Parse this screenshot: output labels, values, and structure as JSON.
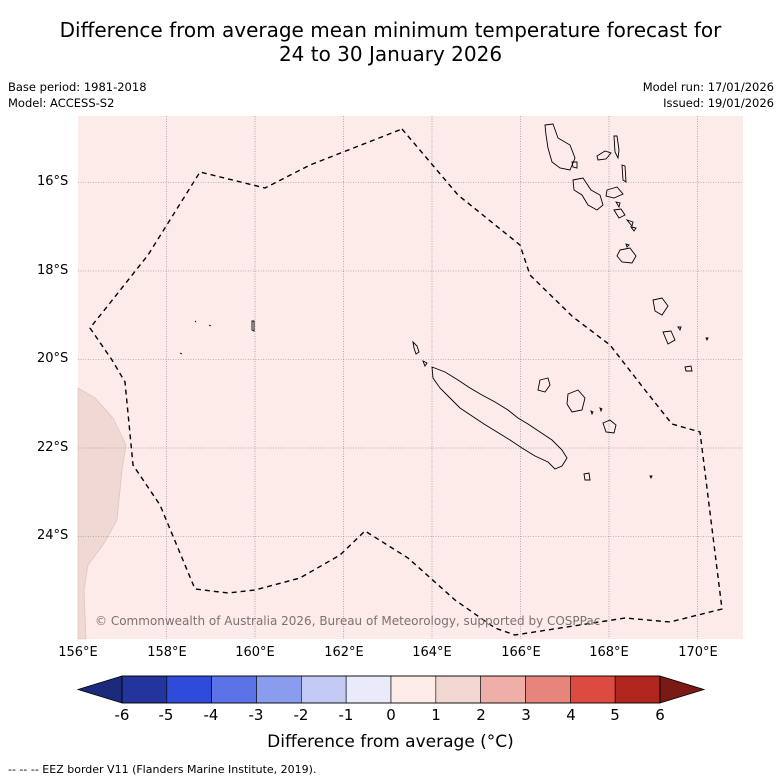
{
  "title": {
    "line1": "Difference from average mean minimum temperature forecast for",
    "line2": "24 to 30 January 2026"
  },
  "meta_left": {
    "base_period": "Base period: 1981-2018",
    "model": "Model: ACCESS-S2"
  },
  "meta_right": {
    "model_run": "Model run: 17/01/2026",
    "issued": "Issued: 19/01/2026"
  },
  "map": {
    "lon_range": [
      156,
      171
    ],
    "lat_range": [
      -26.3,
      -14.5
    ],
    "lat_ticks": [
      "16°S",
      "18°S",
      "20°S",
      "22°S",
      "24°S"
    ],
    "lon_ticks": [
      "156°E",
      "158°E",
      "160°E",
      "162°E",
      "164°E",
      "166°E",
      "168°E",
      "170°E"
    ],
    "background_anomaly_color": "#fcebe9",
    "west_anomaly_color": "#f0d8d5",
    "copyright": "© Commonwealth of Australia 2026, Bureau of Meteorology, supported by COSPPac"
  },
  "colorbar": {
    "labels": [
      "-6",
      "-5",
      "-4",
      "-3",
      "-2",
      "-1",
      "0",
      "1",
      "2",
      "3",
      "4",
      "5",
      "6"
    ],
    "colors": [
      "#23359c",
      "#2e4bd9",
      "#5b73e6",
      "#8a9cee",
      "#c2c9f5",
      "#e9ebfa",
      "#fdebe7",
      "#f1d6d2",
      "#efaea8",
      "#e6857c",
      "#dc4a40",
      "#b0261f"
    ],
    "under_color": "#1b2a7a",
    "over_color": "#7a1a14",
    "title": "Difference from average (°C)"
  },
  "footer": {
    "legend": "--  --  -- EEZ border V11 (Flanders Marine Institute, 2019)."
  }
}
